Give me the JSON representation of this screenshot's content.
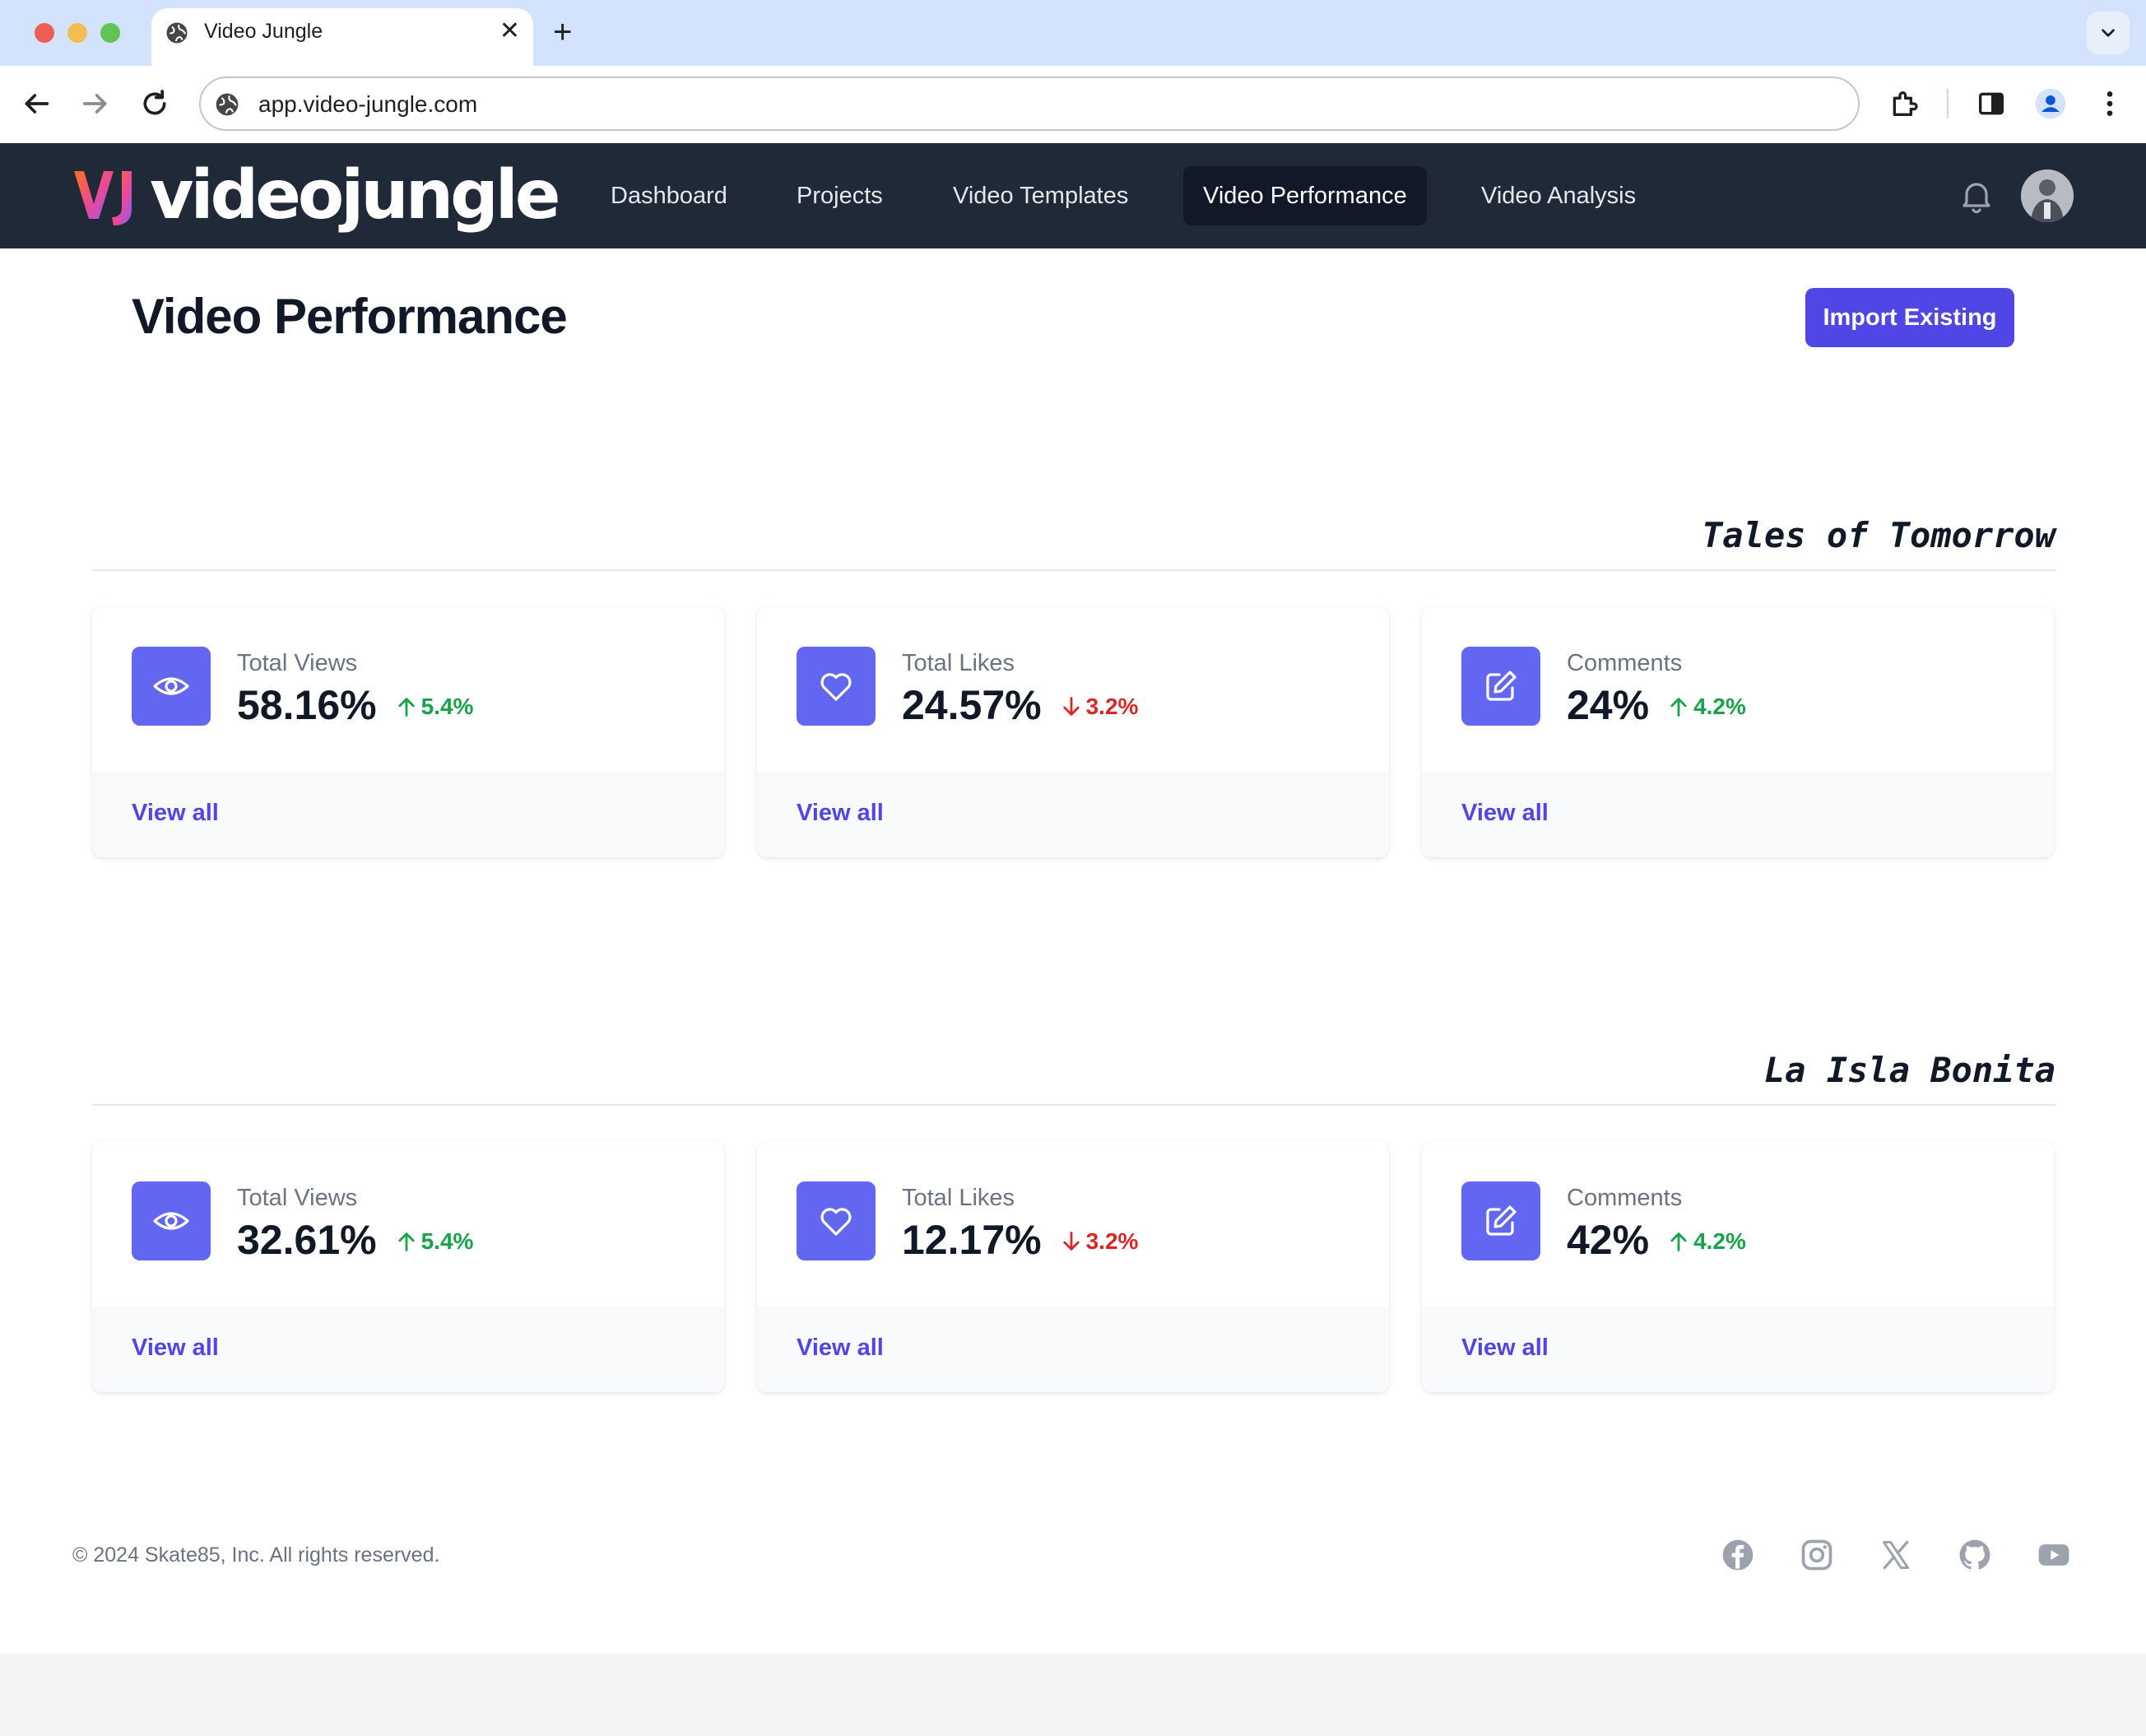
{
  "browser": {
    "tab_title": "Video Jungle",
    "url": "app.video-jungle.com",
    "new_tab": "+",
    "close": "✕"
  },
  "app": {
    "logo_text": "videojungle",
    "nav": [
      {
        "label": "Dashboard",
        "active": false
      },
      {
        "label": "Projects",
        "active": false
      },
      {
        "label": "Video Templates",
        "active": false
      },
      {
        "label": "Video Performance",
        "active": true
      },
      {
        "label": "Video Analysis",
        "active": false
      }
    ]
  },
  "page": {
    "title": "Video Performance",
    "import_button": "Import Existing"
  },
  "sections": [
    {
      "title": "Tales of Tomorrow",
      "cards": [
        {
          "icon": "eye-icon",
          "label": "Total Views",
          "value": "58.16%",
          "change": "5.4%",
          "trend": "up",
          "link": "View all"
        },
        {
          "icon": "heart-icon",
          "label": "Total Likes",
          "value": "24.57%",
          "change": "3.2%",
          "trend": "down",
          "link": "View all"
        },
        {
          "icon": "pencil-square-icon",
          "label": "Comments",
          "value": "24%",
          "change": "4.2%",
          "trend": "up",
          "link": "View all"
        }
      ]
    },
    {
      "title": "La Isla Bonita",
      "cards": [
        {
          "icon": "eye-icon",
          "label": "Total Views",
          "value": "32.61%",
          "change": "5.4%",
          "trend": "up",
          "link": "View all"
        },
        {
          "icon": "heart-icon",
          "label": "Total Likes",
          "value": "12.17%",
          "change": "3.2%",
          "trend": "down",
          "link": "View all"
        },
        {
          "icon": "pencil-square-icon",
          "label": "Comments",
          "value": "42%",
          "change": "4.2%",
          "trend": "up",
          "link": "View all"
        }
      ]
    }
  ],
  "footer": {
    "copyright": "© 2024 Skate85, Inc. All rights reserved.",
    "social": [
      "facebook-icon",
      "instagram-icon",
      "x-icon",
      "github-icon",
      "youtube-icon"
    ]
  },
  "colors": {
    "accent": "#4f46e5",
    "icon_bg": "#6366f1",
    "up": "#16a34a",
    "down": "#dc2626",
    "navbar": "#1f2937"
  }
}
